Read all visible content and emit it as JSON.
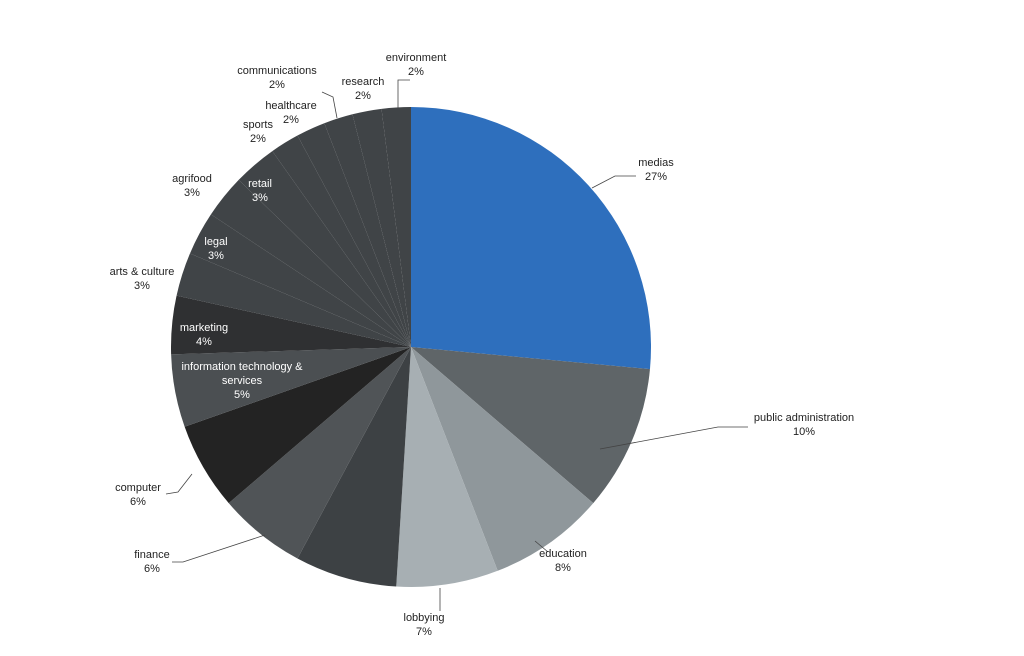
{
  "chart_data": {
    "type": "pie",
    "title": "",
    "start_angle_deg": 0,
    "direction": "clockwise",
    "slices": [
      {
        "label": "medias",
        "value": 27,
        "value_label": "27%",
        "color": "#2e6fbd"
      },
      {
        "label": "public administration",
        "value": 10,
        "value_label": "10%",
        "color": "#5f6568"
      },
      {
        "label": "education",
        "value": 8,
        "value_label": "8%",
        "color": "#8f979b"
      },
      {
        "label": "lobbying",
        "value": 7,
        "value_label": "7%",
        "color": "#a7afb3"
      },
      {
        "label": "",
        "value": 7,
        "value_label": "",
        "color": "#3d4144"
      },
      {
        "label": "finance",
        "value": 6,
        "value_label": "6%",
        "color": "#505457"
      },
      {
        "label": "computer",
        "value": 6,
        "value_label": "6%",
        "color": "#232323"
      },
      {
        "label": "information technology & services",
        "value": 5,
        "value_label": "5%",
        "color": "#4b4f52"
      },
      {
        "label": "marketing",
        "value": 4,
        "value_label": "4%",
        "color": "#2f3032"
      },
      {
        "label": "arts & culture",
        "value": 3,
        "value_label": "3%",
        "color": "#404447"
      },
      {
        "label": "legal",
        "value": 3,
        "value_label": "3%",
        "color": "#404447"
      },
      {
        "label": "agrifood",
        "value": 3,
        "value_label": "3%",
        "color": "#404447"
      },
      {
        "label": "retail",
        "value": 3,
        "value_label": "3%",
        "color": "#404447"
      },
      {
        "label": "sports",
        "value": 2,
        "value_label": "2%",
        "color": "#404447"
      },
      {
        "label": "healthcare",
        "value": 2,
        "value_label": "2%",
        "color": "#404447"
      },
      {
        "label": "communications",
        "value": 2,
        "value_label": "2%",
        "color": "#404447"
      },
      {
        "label": "research",
        "value": 2,
        "value_label": "2%",
        "color": "#404447"
      },
      {
        "label": "environment",
        "value": 2,
        "value_label": "2%",
        "color": "#404447"
      }
    ]
  }
}
